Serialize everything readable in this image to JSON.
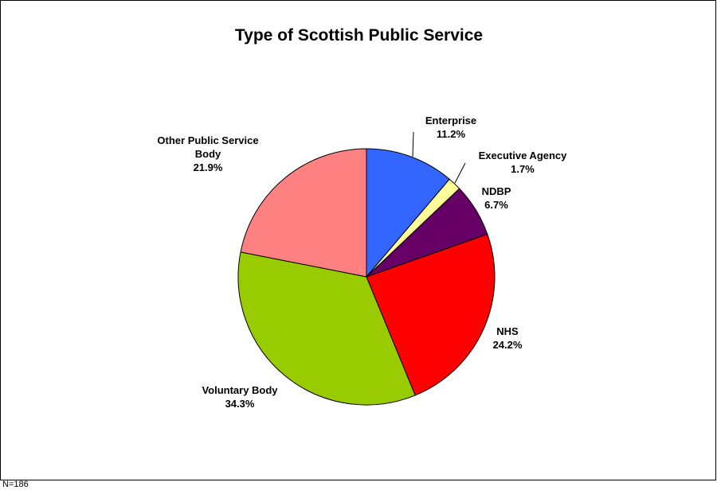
{
  "chart_data": {
    "type": "pie",
    "title": "Type of Scottish Public Service",
    "slices": [
      {
        "label": "Enterprise",
        "value": 11.2,
        "display": "11.2%",
        "color": "#3366ff"
      },
      {
        "label": "Executive Agency",
        "value": 1.7,
        "display": "1.7%",
        "color": "#ffff99"
      },
      {
        "label": "NDBP",
        "value": 6.7,
        "display": "6.7%",
        "color": "#660066"
      },
      {
        "label": "NHS",
        "value": 24.2,
        "display": "24.2%",
        "color": "#ff0000"
      },
      {
        "label": "Voluntary Body",
        "value": 34.3,
        "display": "34.3%",
        "color": "#99cc00"
      },
      {
        "label": "Other Public Service Body",
        "value": 21.9,
        "display": "21.9%",
        "color": "#ff8080"
      }
    ],
    "start_angle": "12 o'clock",
    "direction": "clockwise",
    "legend": "none"
  },
  "footnote": "N=186"
}
